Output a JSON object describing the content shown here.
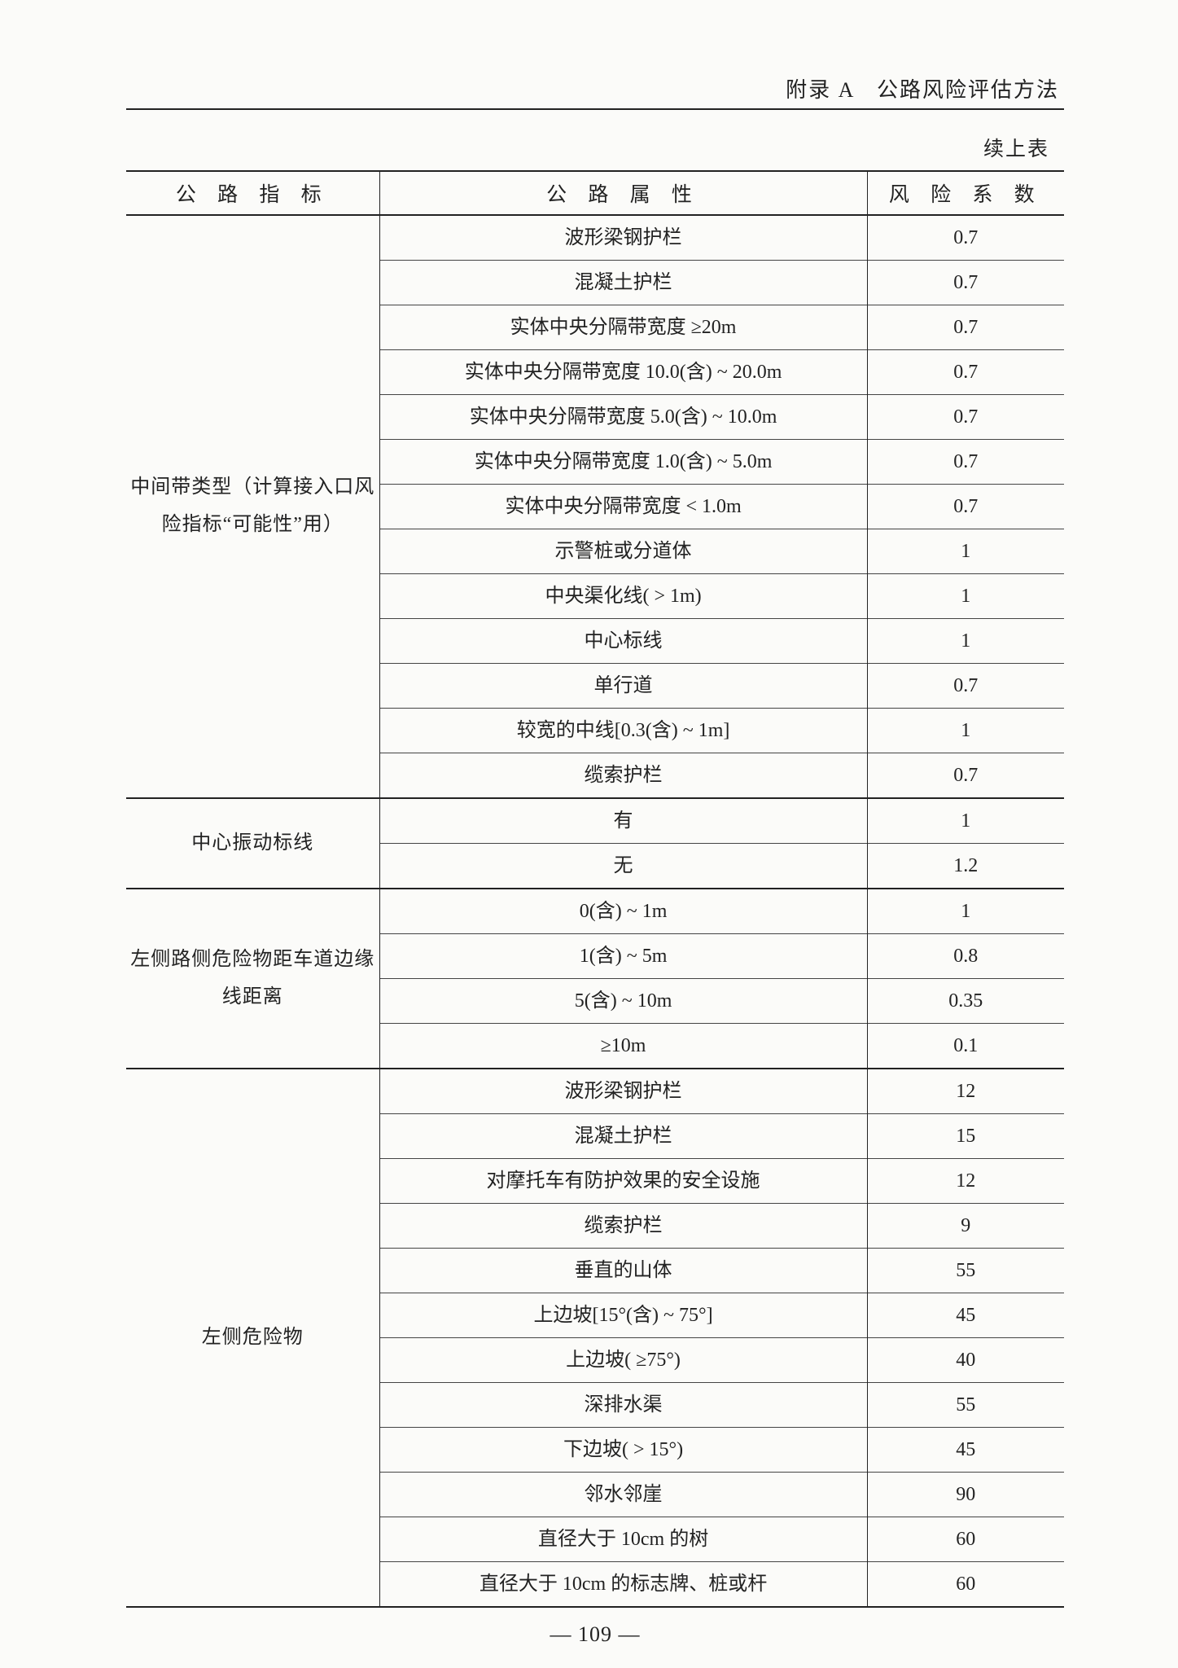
{
  "header": {
    "appendix": "附录 A　公路风险评估方法",
    "continue_label": "续上表"
  },
  "table": {
    "headers": {
      "indicator": "公 路 指 标",
      "attribute": "公 路 属 性",
      "risk": "风 险 系 数"
    },
    "groups": [
      {
        "indicator": "中间带类型（计算接入口风险指标“可能性”用）",
        "rows": [
          {
            "attr": "波形梁钢护栏",
            "risk": "0.7"
          },
          {
            "attr": "混凝土护栏",
            "risk": "0.7"
          },
          {
            "attr": "实体中央分隔带宽度 ≥20m",
            "risk": "0.7"
          },
          {
            "attr": "实体中央分隔带宽度 10.0(含) ~ 20.0m",
            "risk": "0.7"
          },
          {
            "attr": "实体中央分隔带宽度 5.0(含) ~ 10.0m",
            "risk": "0.7"
          },
          {
            "attr": "实体中央分隔带宽度 1.0(含) ~ 5.0m",
            "risk": "0.7"
          },
          {
            "attr": "实体中央分隔带宽度 < 1.0m",
            "risk": "0.7"
          },
          {
            "attr": "示警桩或分道体",
            "risk": "1"
          },
          {
            "attr": "中央渠化线( > 1m)",
            "risk": "1"
          },
          {
            "attr": "中心标线",
            "risk": "1"
          },
          {
            "attr": "单行道",
            "risk": "0.7"
          },
          {
            "attr": "较宽的中线[0.3(含) ~ 1m]",
            "risk": "1"
          },
          {
            "attr": "缆索护栏",
            "risk": "0.7"
          }
        ]
      },
      {
        "indicator": "中心振动标线",
        "rows": [
          {
            "attr": "有",
            "risk": "1"
          },
          {
            "attr": "无",
            "risk": "1.2"
          }
        ]
      },
      {
        "indicator": "左侧路侧危险物距车道边缘线距离",
        "rows": [
          {
            "attr": "0(含) ~ 1m",
            "risk": "1"
          },
          {
            "attr": "1(含) ~ 5m",
            "risk": "0.8"
          },
          {
            "attr": "5(含) ~ 10m",
            "risk": "0.35"
          },
          {
            "attr": "≥10m",
            "risk": "0.1"
          }
        ]
      },
      {
        "indicator": "左侧危险物",
        "rows": [
          {
            "attr": "波形梁钢护栏",
            "risk": "12"
          },
          {
            "attr": "混凝土护栏",
            "risk": "15"
          },
          {
            "attr": "对摩托车有防护效果的安全设施",
            "risk": "12"
          },
          {
            "attr": "缆索护栏",
            "risk": "9"
          },
          {
            "attr": "垂直的山体",
            "risk": "55"
          },
          {
            "attr": "上边坡[15°(含) ~ 75°]",
            "risk": "45"
          },
          {
            "attr": "上边坡( ≥75°)",
            "risk": "40"
          },
          {
            "attr": "深排水渠",
            "risk": "55"
          },
          {
            "attr": "下边坡( > 15°)",
            "risk": "45"
          },
          {
            "attr": "邻水邻崖",
            "risk": "90"
          },
          {
            "attr": "直径大于 10cm 的树",
            "risk": "60"
          },
          {
            "attr": "直径大于 10cm 的标志牌、桩或杆",
            "risk": "60"
          }
        ]
      }
    ]
  },
  "page_number": "— 109 —"
}
